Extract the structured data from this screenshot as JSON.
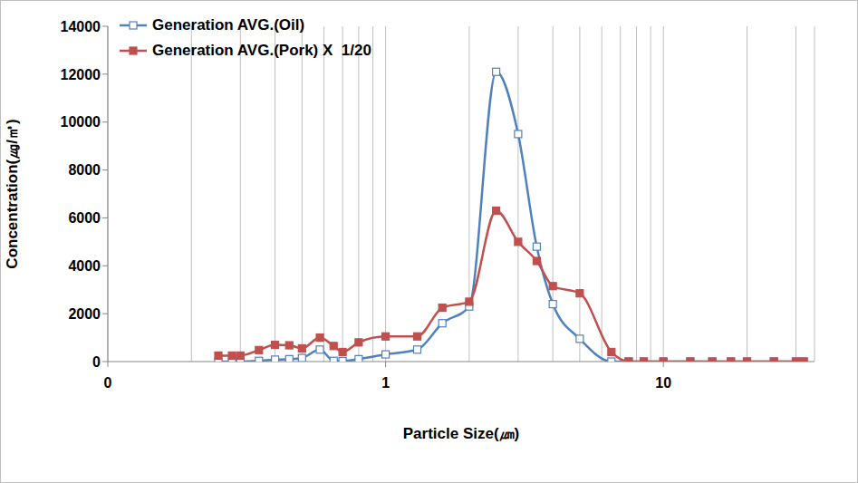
{
  "chart_data": {
    "type": "line",
    "x_label": "Particle Size(㎛)",
    "y_label": "Concentration(㎍/㎥)",
    "log": "x",
    "grid": "x",
    "legend": "top-left",
    "xlim": [
      0.1,
      35
    ],
    "xticks": [
      {
        "value": 0.1,
        "label": "0"
      },
      1,
      10
    ],
    "ylim": [
      0,
      14000
    ],
    "yticks": [
      0,
      2000,
      4000,
      6000,
      8000,
      10000,
      12000,
      14000
    ],
    "line_style": "smooth",
    "x": [
      0.25,
      0.28,
      0.3,
      0.35,
      0.4,
      0.45,
      0.5,
      0.58,
      0.65,
      0.7,
      0.8,
      1.0,
      1.3,
      1.6,
      2.0,
      2.5,
      3.0,
      3.5,
      4.0,
      5.0,
      6.5,
      7.5,
      8.5,
      10,
      12.5,
      15,
      17.5,
      20,
      25,
      30,
      32
    ],
    "series": [
      {
        "name": "Generation AVG.(Oil)",
        "color": "#4f81bd",
        "marker": "square-open",
        "values": [
          0,
          0,
          0,
          30,
          80,
          100,
          150,
          500,
          30,
          20,
          100,
          300,
          500,
          1600,
          2300,
          12100,
          9500,
          4800,
          2400,
          950,
          0,
          0,
          0,
          0,
          0,
          0,
          0,
          0,
          0,
          0,
          0
        ]
      },
      {
        "name": "Generation AVG.(Pork) X  1/20",
        "color": "#c0504d",
        "marker": "square",
        "values": [
          250,
          250,
          250,
          480,
          700,
          680,
          550,
          1000,
          650,
          400,
          800,
          1050,
          1050,
          2250,
          2500,
          6300,
          5000,
          4200,
          3150,
          2850,
          400,
          0,
          0,
          0,
          0,
          0,
          0,
          0,
          0,
          0,
          0
        ]
      }
    ]
  }
}
